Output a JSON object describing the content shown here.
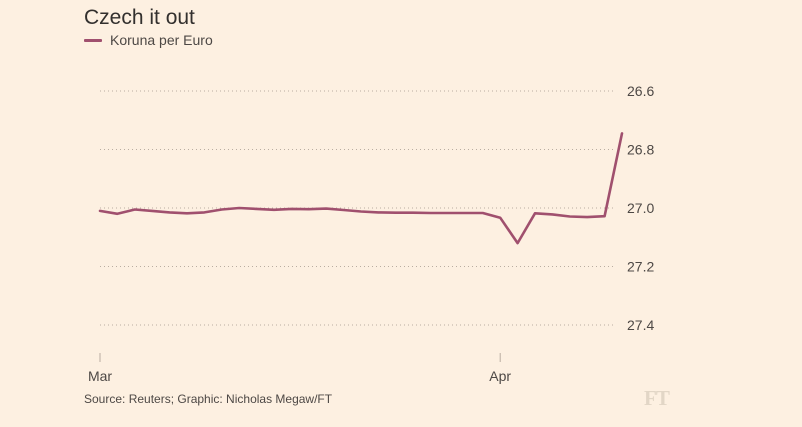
{
  "title": "Czech it out",
  "source": "Source: Reuters; Graphic: Nicholas Megaw/FT",
  "logo": "FT",
  "colors": {
    "background": "#fdf0e1",
    "line": "#a0506e",
    "grid": "#b9ada1",
    "text": "#4d4845"
  },
  "chart_data": {
    "type": "line",
    "title": "Czech it out",
    "xlabel": "",
    "ylabel": "",
    "y_inverted": true,
    "ylim": [
      26.5,
      27.5
    ],
    "y_ticks": [
      "26.6",
      "26.8",
      "27.0",
      "27.2",
      "27.4"
    ],
    "x_ticks": [
      {
        "label": "Mar",
        "index": 0
      },
      {
        "label": "Apr",
        "index": 23
      }
    ],
    "grid": true,
    "legend": "top-left",
    "series": [
      {
        "name": "Koruna per Euro",
        "values": [
          27.01,
          27.02,
          27.005,
          27.01,
          27.015,
          27.018,
          27.015,
          27.005,
          27.0,
          27.003,
          27.006,
          27.003,
          27.004,
          27.002,
          27.007,
          27.012,
          27.015,
          27.016,
          27.016,
          27.017,
          27.017,
          27.017,
          27.017,
          27.033,
          27.12,
          27.018,
          27.022,
          27.029,
          27.031,
          27.028,
          26.745
        ]
      }
    ]
  }
}
